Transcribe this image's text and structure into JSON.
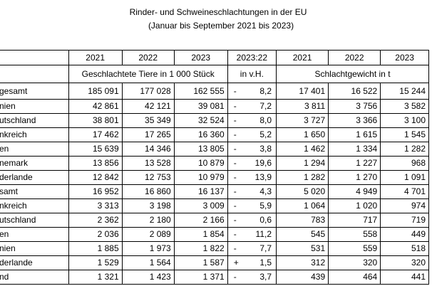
{
  "title": {
    "line1": "Rinder- und Schweineschlachtungen in der EU",
    "line2": "(Januar bis September 2021 bis 2023)"
  },
  "header": {
    "years": [
      "2021",
      "2022",
      "2023",
      "2023:22",
      "2021",
      "2022",
      "2023"
    ],
    "units_animals": "Geschlachtete Tiere in 1 000 Stück",
    "units_change": "in v.H.",
    "units_weight": "Schlachtgewicht in t"
  },
  "rows": [
    {
      "label": "gesamt",
      "a2021": "185 091",
      "a2022": "177 028",
      "a2023": "162 555",
      "sign": "-",
      "change": "8,2",
      "w2021": "17 401",
      "w2022": "16 522",
      "w2023": "15 244"
    },
    {
      "label": "nien",
      "a2021": "42 861",
      "a2022": "42 121",
      "a2023": "39 081",
      "sign": "-",
      "change": "7,2",
      "w2021": "3 811",
      "w2022": "3 756",
      "w2023": "3 582"
    },
    {
      "label": "utschland",
      "a2021": "38 801",
      "a2022": "35 349",
      "a2023": "32 524",
      "sign": "-",
      "change": "8,0",
      "w2021": "3 727",
      "w2022": "3 366",
      "w2023": "3 100"
    },
    {
      "label": "nkreich",
      "a2021": "17 462",
      "a2022": "17 265",
      "a2023": "16 360",
      "sign": "-",
      "change": "5,2",
      "w2021": "1 650",
      "w2022": "1 615",
      "w2023": "1 545"
    },
    {
      "label": "en",
      "a2021": "15 639",
      "a2022": "14 346",
      "a2023": "13 805",
      "sign": "-",
      "change": "3,8",
      "w2021": "1 462",
      "w2022": "1 334",
      "w2023": "1 282"
    },
    {
      "label": "nemark",
      "a2021": "13 856",
      "a2022": "13 528",
      "a2023": "10 879",
      "sign": "-",
      "change": "19,6",
      "w2021": "1 294",
      "w2022": "1 227",
      "w2023": "968"
    },
    {
      "label": "derlande",
      "a2021": "12 842",
      "a2022": "12 753",
      "a2023": "10 979",
      "sign": "-",
      "change": "13,9",
      "w2021": "1 282",
      "w2022": "1 270",
      "w2023": "1 091"
    },
    {
      "label": "samt",
      "a2021": "16 952",
      "a2022": "16 860",
      "a2023": "16 137",
      "sign": "-",
      "change": "4,3",
      "w2021": "5 020",
      "w2022": "4 949",
      "w2023": "4 701"
    },
    {
      "label": "nkreich",
      "a2021": "3 313",
      "a2022": "3 198",
      "a2023": "3 009",
      "sign": "-",
      "change": "5,9",
      "w2021": "1 064",
      "w2022": "1 020",
      "w2023": "974"
    },
    {
      "label": "utschland",
      "a2021": "2 362",
      "a2022": "2 180",
      "a2023": "2 166",
      "sign": "-",
      "change": "0,6",
      "w2021": "783",
      "w2022": "717",
      "w2023": "719"
    },
    {
      "label": "en",
      "a2021": "2 036",
      "a2022": "2 089",
      "a2023": "1 854",
      "sign": "-",
      "change": "11,2",
      "w2021": "545",
      "w2022": "558",
      "w2023": "449"
    },
    {
      "label": "nien",
      "a2021": "1 885",
      "a2022": "1 973",
      "a2023": "1 822",
      "sign": "-",
      "change": "7,7",
      "w2021": "531",
      "w2022": "559",
      "w2023": "518"
    },
    {
      "label": "derlande",
      "a2021": "1 529",
      "a2022": "1 564",
      "a2023": "1 587",
      "sign": "+",
      "change": "1,5",
      "w2021": "312",
      "w2022": "320",
      "w2023": "320"
    },
    {
      "label": "nd",
      "a2021": "1 321",
      "a2022": "1 423",
      "a2023": "1 371",
      "sign": "-",
      "change": "3,7",
      "w2021": "439",
      "w2022": "464",
      "w2023": "441"
    }
  ]
}
